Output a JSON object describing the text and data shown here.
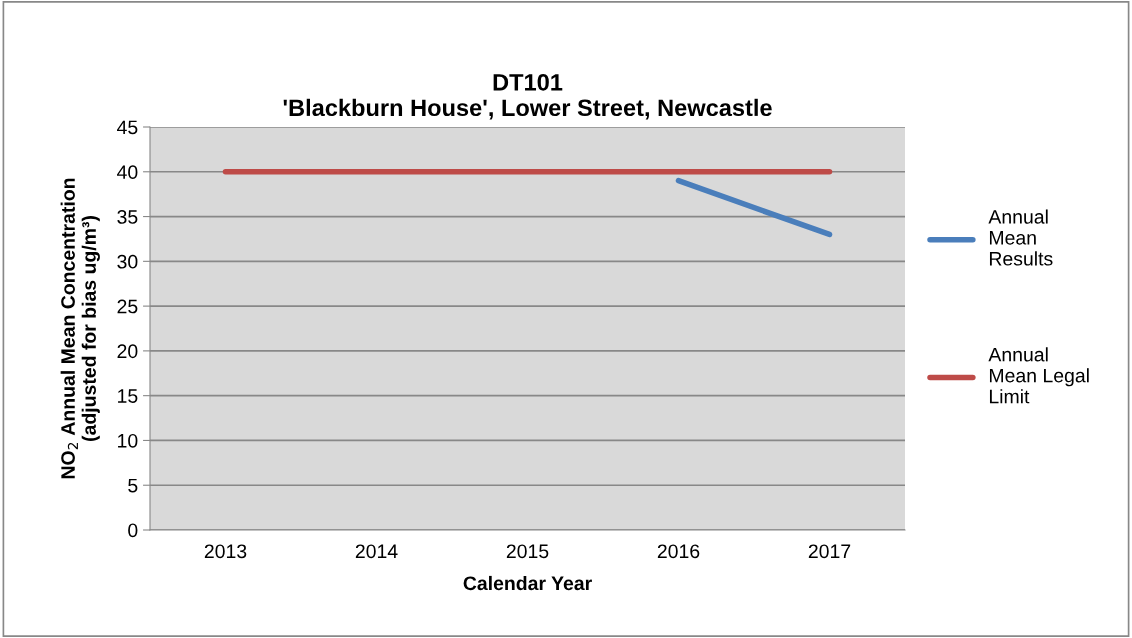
{
  "chart_data": {
    "type": "line",
    "title": "DT101\n'Blackburn House', Lower Street, Newcastle",
    "xlabel": "Calendar Year",
    "ylabel": "NO$_{2}$ Annual Mean Concentration\n(adjusted for bias ug/m³)",
    "categories": [
      "2013",
      "2014",
      "2015",
      "2016",
      "2017"
    ],
    "series": [
      {
        "name": "Annual\nMean\nResults",
        "color": "#4a7ebb",
        "values": [
          null,
          null,
          null,
          39,
          33
        ]
      },
      {
        "name": "Annual\nMean Legal\nLimit",
        "color": "#be4b48",
        "values": [
          40,
          40,
          40,
          40,
          40
        ]
      }
    ],
    "ylim": [
      0,
      45
    ],
    "yticks": [
      0,
      5,
      10,
      15,
      20,
      25,
      30,
      35,
      40,
      45
    ],
    "grid": "y",
    "legend": "right",
    "marker": "none",
    "line_style": "solid"
  }
}
